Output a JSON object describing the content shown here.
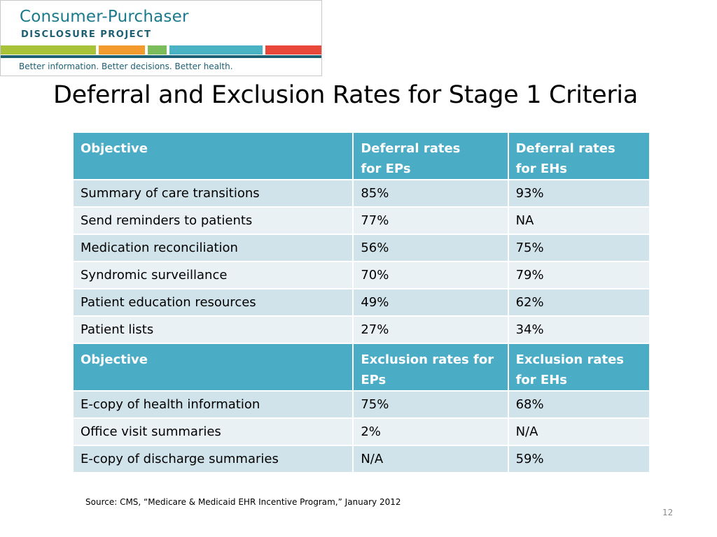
{
  "logo": {
    "title": "Consumer-Purchaser",
    "subtitle": "DISCLOSURE PROJECT",
    "tagline": "Better information. Better decisions. Better health.",
    "bar_colors": [
      "#a8c33a",
      "#f29a2e",
      "#7bbd5b",
      "#4ab3c3",
      "#e9473a"
    ]
  },
  "title": "Deferral and Exclusion Rates for Stage 1 Criteria",
  "table": {
    "header_color": "#4bacc6",
    "row_color_odd": "#d0e3ea",
    "row_color_even": "#e9f1f5",
    "sections": [
      {
        "headers": [
          "Objective",
          "Deferral rates\nfor EPs",
          "Deferral rates\nfor EHs"
        ],
        "rows": [
          [
            "Summary of care transitions",
            "85%",
            "93%"
          ],
          [
            "Send reminders to patients",
            "77%",
            "NA"
          ],
          [
            "Medication reconciliation",
            "56%",
            "75%"
          ],
          [
            "Syndromic surveillance",
            "70%",
            "79%"
          ],
          [
            "Patient education resources",
            "49%",
            "62%"
          ],
          [
            "Patient lists",
            "27%",
            "34%"
          ]
        ]
      },
      {
        "headers": [
          "Objective",
          "Exclusion rates for EPs",
          "Exclusion rates for EHs"
        ],
        "rows": [
          [
            "E-copy of health information",
            "75%",
            "68%"
          ],
          [
            "Office visit summaries",
            "2%",
            "N/A"
          ],
          [
            "E-copy of discharge summaries",
            "N/A",
            "59%"
          ]
        ]
      }
    ]
  },
  "source": "Source: CMS, “Medicare & Medicaid EHR Incentive Program,” January 2012",
  "page_number": "12"
}
